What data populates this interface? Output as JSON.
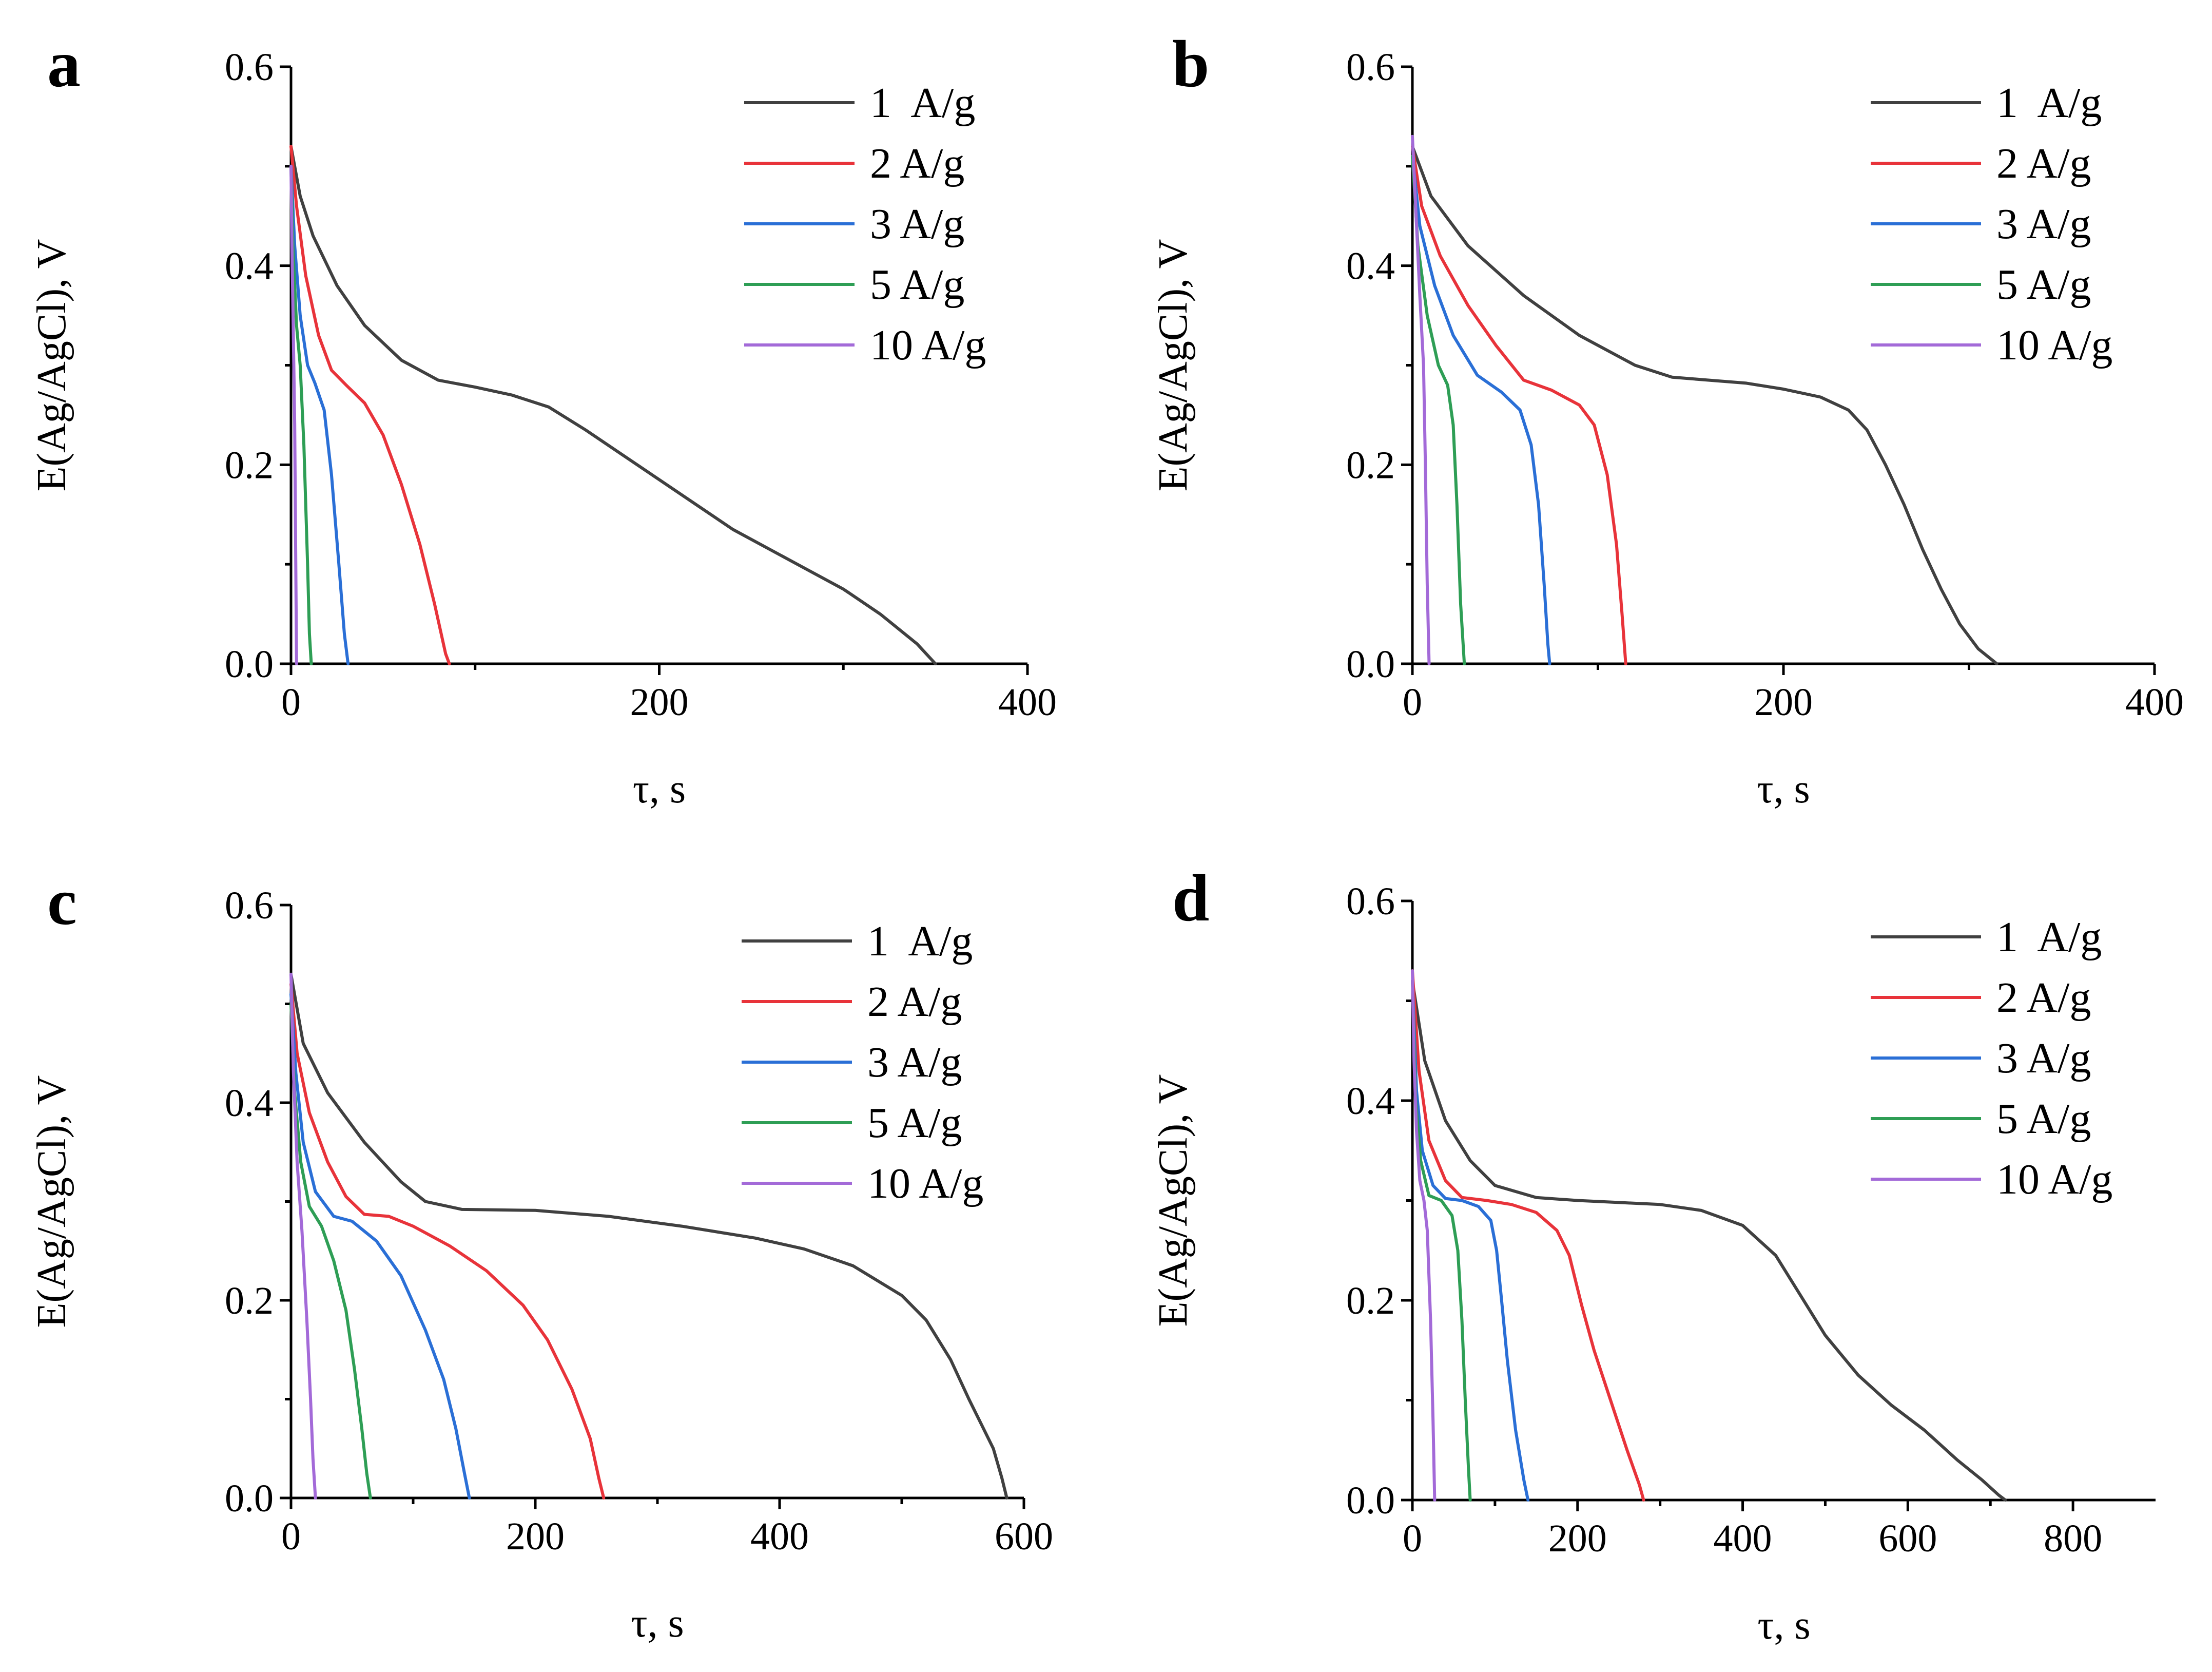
{
  "chart_data": [
    {
      "panel": "a",
      "type": "line",
      "xlabel": "τ, s",
      "ylabel": "E(Ag/AgCl), V",
      "xlim": [
        0,
        400
      ],
      "ylim": [
        0,
        0.6
      ],
      "xticks": [
        0,
        200,
        400
      ],
      "yticks": [
        0.0,
        0.2,
        0.4,
        0.6
      ],
      "xtick_labels": [
        "0",
        "200",
        "400"
      ],
      "ytick_labels": [
        "0.0",
        "0.2",
        "0.4",
        "0.6"
      ],
      "legend_position": "top-right",
      "series": [
        {
          "name": "1  A/g",
          "color": "#404040",
          "x": [
            0,
            5,
            12,
            25,
            40,
            60,
            80,
            100,
            120,
            140,
            160,
            180,
            200,
            220,
            240,
            260,
            280,
            300,
            320,
            340,
            350
          ],
          "y": [
            0.52,
            0.47,
            0.43,
            0.38,
            0.34,
            0.305,
            0.285,
            0.278,
            0.27,
            0.258,
            0.235,
            0.21,
            0.185,
            0.16,
            0.135,
            0.115,
            0.095,
            0.075,
            0.05,
            0.02,
            0.0
          ]
        },
        {
          "name": "2 A/g",
          "color": "#e8333a",
          "x": [
            0,
            3,
            8,
            15,
            22,
            30,
            40,
            50,
            60,
            70,
            78,
            84,
            86
          ],
          "y": [
            0.52,
            0.46,
            0.39,
            0.33,
            0.295,
            0.28,
            0.262,
            0.23,
            0.18,
            0.12,
            0.06,
            0.01,
            0.0
          ]
        },
        {
          "name": "3 A/g",
          "color": "#2a6fd6",
          "x": [
            0,
            2,
            5,
            9,
            13,
            18,
            22,
            26,
            29,
            31
          ],
          "y": [
            0.5,
            0.42,
            0.35,
            0.3,
            0.282,
            0.255,
            0.19,
            0.1,
            0.03,
            0.0
          ]
        },
        {
          "name": "5 A/g",
          "color": "#2e9e55",
          "x": [
            0,
            1,
            3,
            5,
            7,
            9,
            10,
            11
          ],
          "y": [
            0.5,
            0.42,
            0.34,
            0.3,
            0.22,
            0.1,
            0.03,
            0.0
          ]
        },
        {
          "name": "10 A/g",
          "color": "#a36ad8",
          "x": [
            0,
            0.5,
            1.2,
            2,
            2.6,
            3
          ],
          "y": [
            0.5,
            0.42,
            0.34,
            0.24,
            0.1,
            0.0
          ]
        }
      ]
    },
    {
      "panel": "b",
      "type": "line",
      "xlabel": "τ, s",
      "ylabel": "E(Ag/AgCl), V",
      "xlim": [
        0,
        400
      ],
      "ylim": [
        0,
        0.6
      ],
      "xticks": [
        0,
        200,
        400
      ],
      "yticks": [
        0.0,
        0.2,
        0.4,
        0.6
      ],
      "xtick_labels": [
        "0",
        "200",
        "400"
      ],
      "ytick_labels": [
        "0.0",
        "0.2",
        "0.4",
        "0.6"
      ],
      "legend_position": "top-right",
      "series": [
        {
          "name": "1  A/g",
          "color": "#404040",
          "x": [
            0,
            10,
            30,
            60,
            90,
            120,
            140,
            160,
            180,
            200,
            220,
            235,
            245,
            255,
            265,
            275,
            285,
            295,
            305,
            315
          ],
          "y": [
            0.52,
            0.47,
            0.42,
            0.37,
            0.33,
            0.3,
            0.288,
            0.285,
            0.282,
            0.276,
            0.268,
            0.255,
            0.235,
            0.2,
            0.16,
            0.115,
            0.075,
            0.04,
            0.015,
            0.0
          ]
        },
        {
          "name": "2 A/g",
          "color": "#e8333a",
          "x": [
            0,
            5,
            15,
            30,
            45,
            60,
            75,
            90,
            98,
            105,
            110,
            113,
            115
          ],
          "y": [
            0.52,
            0.46,
            0.41,
            0.36,
            0.32,
            0.285,
            0.275,
            0.26,
            0.24,
            0.19,
            0.12,
            0.05,
            0.0
          ]
        },
        {
          "name": "3 A/g",
          "color": "#2a6fd6",
          "x": [
            0,
            4,
            12,
            22,
            35,
            48,
            58,
            64,
            68,
            71,
            73,
            74
          ],
          "y": [
            0.51,
            0.44,
            0.38,
            0.33,
            0.29,
            0.273,
            0.255,
            0.22,
            0.16,
            0.08,
            0.02,
            0.0
          ]
        },
        {
          "name": "5 A/g",
          "color": "#2e9e55",
          "x": [
            0,
            3,
            8,
            14,
            19,
            22,
            24,
            26,
            28
          ],
          "y": [
            0.51,
            0.42,
            0.35,
            0.3,
            0.28,
            0.24,
            0.16,
            0.06,
            0.0
          ]
        },
        {
          "name": "10 A/g",
          "color": "#a36ad8",
          "x": [
            0,
            2,
            4,
            6,
            7,
            8,
            9
          ],
          "y": [
            0.53,
            0.45,
            0.37,
            0.3,
            0.2,
            0.08,
            0.0
          ]
        }
      ]
    },
    {
      "panel": "c",
      "type": "line",
      "xlabel": "τ, s",
      "ylabel": "E(Ag/AgCl), V",
      "xlim": [
        0,
        600
      ],
      "ylim": [
        0,
        0.6
      ],
      "xticks": [
        0,
        200,
        400,
        600
      ],
      "yticks": [
        0.0,
        0.2,
        0.4,
        0.6
      ],
      "xtick_labels": [
        "0",
        "200",
        "400",
        "600"
      ],
      "ytick_labels": [
        "0.0",
        "0.2",
        "0.4",
        "0.6"
      ],
      "legend_position": "top-right",
      "series": [
        {
          "name": "1  A/g",
          "color": "#404040",
          "x": [
            0,
            10,
            30,
            60,
            90,
            110,
            140,
            200,
            260,
            320,
            380,
            420,
            460,
            500,
            520,
            540,
            555,
            565,
            575,
            582,
            586
          ],
          "y": [
            0.53,
            0.46,
            0.41,
            0.36,
            0.32,
            0.3,
            0.292,
            0.291,
            0.285,
            0.275,
            0.263,
            0.252,
            0.235,
            0.205,
            0.18,
            0.14,
            0.1,
            0.075,
            0.05,
            0.02,
            0.0
          ]
        },
        {
          "name": "2 A/g",
          "color": "#e8333a",
          "x": [
            0,
            5,
            15,
            30,
            45,
            60,
            80,
            100,
            130,
            160,
            190,
            210,
            230,
            245,
            252,
            256
          ],
          "y": [
            0.52,
            0.45,
            0.39,
            0.34,
            0.305,
            0.287,
            0.285,
            0.275,
            0.255,
            0.23,
            0.195,
            0.16,
            0.11,
            0.06,
            0.02,
            0.0
          ]
        },
        {
          "name": "3 A/g",
          "color": "#2a6fd6",
          "x": [
            0,
            4,
            10,
            20,
            35,
            50,
            70,
            90,
            110,
            125,
            135,
            142,
            146
          ],
          "y": [
            0.51,
            0.43,
            0.36,
            0.31,
            0.285,
            0.28,
            0.26,
            0.225,
            0.17,
            0.12,
            0.07,
            0.025,
            0.0
          ]
        },
        {
          "name": "5 A/g",
          "color": "#2e9e55",
          "x": [
            0,
            3,
            8,
            15,
            25,
            35,
            45,
            52,
            58,
            62,
            65
          ],
          "y": [
            0.5,
            0.41,
            0.34,
            0.295,
            0.275,
            0.24,
            0.19,
            0.13,
            0.07,
            0.025,
            0.0
          ]
        },
        {
          "name": "10 A/g",
          "color": "#a36ad8",
          "x": [
            0,
            2,
            5,
            9,
            13,
            16,
            18,
            20
          ],
          "y": [
            0.53,
            0.43,
            0.34,
            0.27,
            0.18,
            0.1,
            0.04,
            0.0
          ]
        }
      ]
    },
    {
      "panel": "d",
      "type": "line",
      "xlabel": "τ, s",
      "ylabel": "E(Ag/AgCl), V",
      "xlim": [
        0,
        900
      ],
      "ylim": [
        0,
        0.6
      ],
      "xticks": [
        0,
        200,
        400,
        600,
        800
      ],
      "yticks": [
        0.0,
        0.2,
        0.4,
        0.6
      ],
      "xtick_labels": [
        "0",
        "200",
        "400",
        "600",
        "800"
      ],
      "ytick_labels": [
        "0.0",
        "0.2",
        "0.4",
        "0.6"
      ],
      "legend_position": "top-right",
      "series": [
        {
          "name": "1  A/g",
          "color": "#404040",
          "x": [
            0,
            15,
            40,
            70,
            100,
            150,
            200,
            250,
            300,
            350,
            400,
            440,
            470,
            500,
            540,
            580,
            620,
            660,
            690,
            710,
            718
          ],
          "y": [
            0.52,
            0.44,
            0.38,
            0.34,
            0.315,
            0.303,
            0.3,
            0.298,
            0.296,
            0.29,
            0.275,
            0.245,
            0.205,
            0.165,
            0.125,
            0.095,
            0.07,
            0.04,
            0.02,
            0.005,
            0.0
          ]
        },
        {
          "name": "2 A/g",
          "color": "#e8333a",
          "x": [
            0,
            8,
            20,
            40,
            60,
            90,
            120,
            150,
            175,
            190,
            205,
            220,
            240,
            260,
            275,
            280
          ],
          "y": [
            0.53,
            0.43,
            0.36,
            0.32,
            0.303,
            0.3,
            0.296,
            0.288,
            0.27,
            0.245,
            0.195,
            0.15,
            0.1,
            0.05,
            0.015,
            0.0
          ]
        },
        {
          "name": "3 A/g",
          "color": "#2a6fd6",
          "x": [
            0,
            5,
            12,
            25,
            40,
            60,
            80,
            95,
            102,
            108,
            115,
            125,
            135,
            140
          ],
          "y": [
            0.52,
            0.41,
            0.35,
            0.315,
            0.302,
            0.3,
            0.294,
            0.28,
            0.25,
            0.2,
            0.14,
            0.07,
            0.02,
            0.0
          ]
        },
        {
          "name": "5 A/g",
          "color": "#2e9e55",
          "x": [
            0,
            4,
            10,
            20,
            35,
            48,
            55,
            60,
            64,
            68,
            70
          ],
          "y": [
            0.52,
            0.4,
            0.34,
            0.305,
            0.3,
            0.285,
            0.25,
            0.18,
            0.1,
            0.03,
            0.0
          ]
        },
        {
          "name": "10 A/g",
          "color": "#a36ad8",
          "x": [
            0,
            2,
            5,
            9,
            14,
            18,
            22,
            25,
            27
          ],
          "y": [
            0.53,
            0.44,
            0.37,
            0.32,
            0.3,
            0.27,
            0.18,
            0.08,
            0.0
          ]
        }
      ]
    }
  ]
}
